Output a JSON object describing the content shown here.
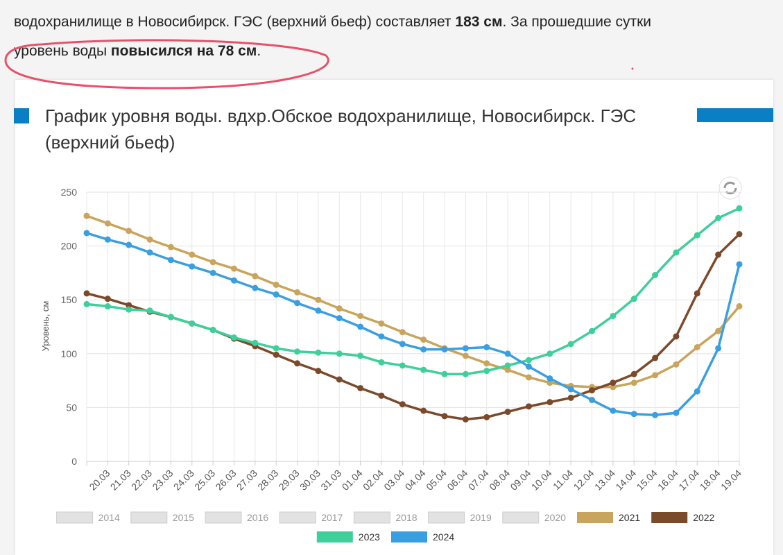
{
  "article": {
    "line1": [
      "водохранилище в Новосибирск. ГЭС (верхний бьеф) составляет ",
      "183 см",
      ". За прошедшие сутки"
    ],
    "line2": [
      "уровень воды ",
      "повысился на 78 см",
      "."
    ]
  },
  "chart_data": {
    "type": "line",
    "title": "График уровня воды. вдхр.Обское водохранилище, Новосибирск. ГЭС (верхний бьеф)",
    "y_label": "Уровень, см",
    "categories": [
      null,
      "20.03",
      "21.03",
      "22.03",
      "23.03",
      "24.03",
      "25.03",
      "26.03",
      "27.03",
      "28.03",
      "29.03",
      "30.03",
      "31.03",
      "01.04",
      "02.04",
      "03.04",
      "04.04",
      "05.04",
      "06.04",
      "07.04",
      "08.04",
      "09.04",
      "10.04",
      "11.04",
      "12.04",
      "13.04",
      "14.04",
      "15.04",
      "16.04",
      "17.04",
      "18.04",
      "19.04"
    ],
    "ylim": [
      0,
      250
    ],
    "yticks": [
      0,
      50,
      100,
      150,
      200,
      250
    ],
    "grid": true,
    "hidden_series": [
      "2014",
      "2015",
      "2016",
      "2017",
      "2018",
      "2019",
      "2020"
    ],
    "series": [
      {
        "name": "2021",
        "color": "#c9a45c",
        "values": [
          228,
          221,
          214,
          206,
          199,
          192,
          185,
          179,
          172,
          164,
          157,
          150,
          142,
          135,
          128,
          120,
          113,
          105,
          98,
          91,
          85,
          78,
          73,
          70,
          69,
          69,
          73,
          80,
          90,
          106,
          121,
          144
        ]
      },
      {
        "name": "2022",
        "color": "#7b4a2a",
        "values": [
          156,
          151,
          145,
          139,
          134,
          128,
          122,
          114,
          107,
          99,
          91,
          84,
          76,
          68,
          61,
          53,
          47,
          42,
          39,
          41,
          46,
          51,
          55,
          59,
          66,
          73,
          81,
          96,
          116,
          156,
          192,
          211
        ]
      },
      {
        "name": "2023",
        "color": "#3ecf9b",
        "values": [
          146,
          144,
          141,
          140,
          134,
          128,
          122,
          115,
          110,
          105,
          102,
          101,
          100,
          98,
          92,
          89,
          85,
          81,
          81,
          84,
          89,
          94,
          100,
          109,
          121,
          135,
          151,
          173,
          194,
          210,
          226,
          235
        ]
      },
      {
        "name": "2024",
        "color": "#3a9fe0",
        "values": [
          212,
          206,
          201,
          194,
          187,
          181,
          175,
          168,
          161,
          155,
          147,
          140,
          133,
          125,
          116,
          109,
          104,
          104,
          105,
          106,
          100,
          88,
          77,
          67,
          57,
          47,
          44,
          43,
          45,
          65,
          105,
          183
        ]
      }
    ]
  }
}
